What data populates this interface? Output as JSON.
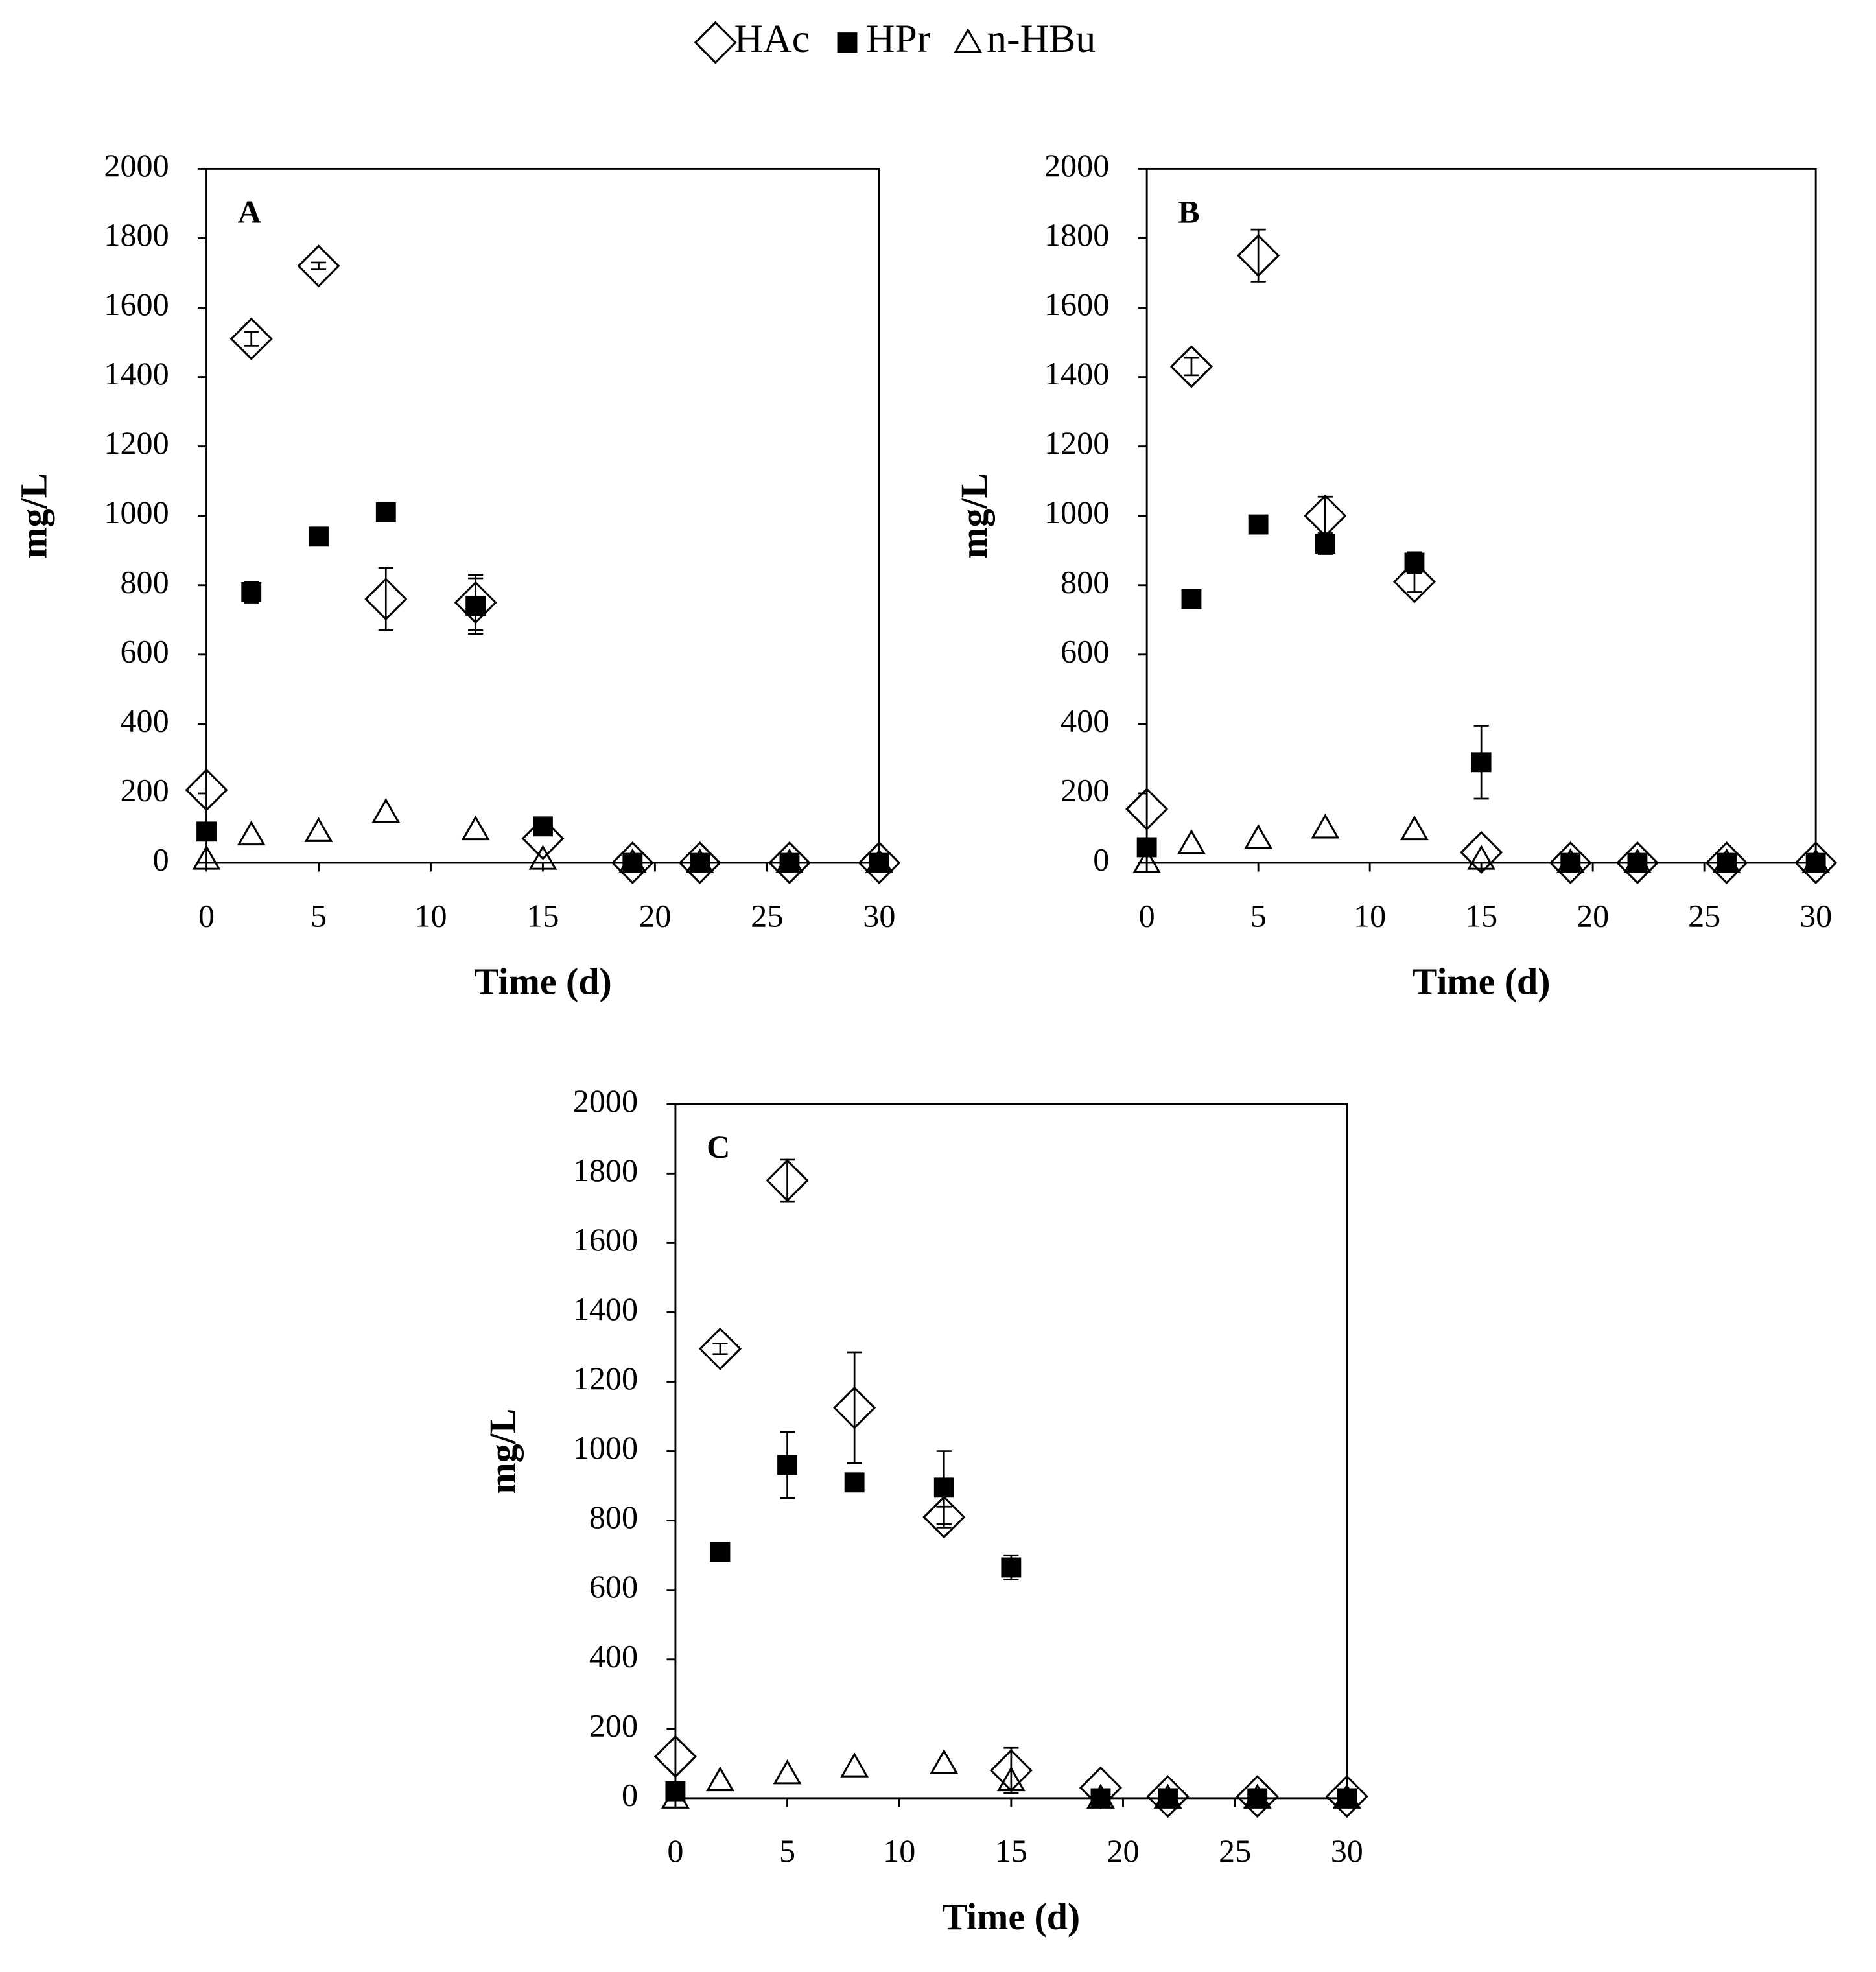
{
  "chart_data": [
    {
      "type": "scatter",
      "label": "A",
      "xlabel": "Time (d)",
      "ylabel": "mg/L",
      "x": [
        0,
        2,
        5,
        8,
        12,
        15,
        19,
        22,
        26,
        30
      ],
      "xlim": [
        0,
        30
      ],
      "ylim": [
        0,
        2000
      ],
      "xticks": [
        0,
        5,
        10,
        15,
        20,
        25,
        30
      ],
      "yticks": [
        0,
        200,
        400,
        600,
        800,
        1000,
        1200,
        1400,
        1600,
        1800,
        2000
      ],
      "series": [
        {
          "name": "HAc",
          "marker": "diamond",
          "color": "#000000",
          "values": [
            210,
            1510,
            1720,
            760,
            750,
            70,
            0,
            0,
            0,
            0
          ],
          "errors": [
            null,
            20,
            10,
            90,
            80,
            null,
            null,
            null,
            null,
            null
          ]
        },
        {
          "name": "HPr",
          "marker": "square",
          "color": "#000000",
          "values": [
            90,
            780,
            940,
            1010,
            740,
            105,
            0,
            0,
            0,
            0
          ],
          "errors": [
            null,
            30,
            null,
            null,
            80,
            null,
            null,
            null,
            null,
            null
          ]
        },
        {
          "name": "n-HBu",
          "marker": "triangle",
          "color": "#000000",
          "values": [
            10,
            80,
            90,
            145,
            95,
            10,
            0,
            0,
            0,
            0
          ],
          "errors": [
            null,
            null,
            null,
            null,
            null,
            null,
            null,
            null,
            null,
            null
          ]
        }
      ]
    },
    {
      "type": "scatter",
      "label": "B",
      "xlabel": "Time (d)",
      "ylabel": "mg/L",
      "x": [
        0,
        2,
        5,
        8,
        12,
        15,
        19,
        22,
        26,
        30
      ],
      "xlim": [
        0,
        30
      ],
      "ylim": [
        0,
        2000
      ],
      "xticks": [
        0,
        5,
        10,
        15,
        20,
        25,
        30
      ],
      "yticks": [
        0,
        200,
        400,
        600,
        800,
        1000,
        1200,
        1400,
        1600,
        1800,
        2000
      ],
      "series": [
        {
          "name": "HAc",
          "marker": "diamond",
          "color": "#000000",
          "values": [
            155,
            1430,
            1750,
            1000,
            810,
            30,
            0,
            0,
            0,
            0
          ],
          "errors": [
            null,
            25,
            75,
            55,
            30,
            null,
            null,
            null,
            null,
            null
          ]
        },
        {
          "name": "HPr",
          "marker": "square",
          "color": "#000000",
          "values": [
            45,
            760,
            975,
            920,
            865,
            290,
            0,
            0,
            0,
            0
          ],
          "errors": [
            null,
            null,
            null,
            30,
            30,
            105,
            null,
            null,
            null,
            null
          ]
        },
        {
          "name": "n-HBu",
          "marker": "triangle",
          "color": "#000000",
          "values": [
            0,
            55,
            70,
            100,
            95,
            10,
            0,
            0,
            0,
            0
          ],
          "errors": [
            null,
            null,
            null,
            null,
            null,
            null,
            null,
            null,
            null,
            null
          ]
        }
      ]
    },
    {
      "type": "scatter",
      "label": "C",
      "xlabel": "Time (d)",
      "ylabel": "mg/L",
      "x": [
        0,
        2,
        5,
        8,
        12,
        15,
        19,
        22,
        26,
        30
      ],
      "xlim": [
        0,
        30
      ],
      "ylim": [
        0,
        2000
      ],
      "xticks": [
        0,
        5,
        10,
        15,
        20,
        25,
        30
      ],
      "yticks": [
        0,
        200,
        400,
        600,
        800,
        1000,
        1200,
        1400,
        1600,
        1800,
        2000
      ],
      "series": [
        {
          "name": "HAc",
          "marker": "diamond",
          "color": "#000000",
          "values": [
            120,
            1295,
            1780,
            1125,
            810,
            80,
            30,
            5,
            5,
            5
          ],
          "errors": [
            null,
            15,
            60,
            160,
            30,
            65,
            null,
            null,
            null,
            null
          ]
        },
        {
          "name": "HPr",
          "marker": "square",
          "color": "#000000",
          "values": [
            20,
            710,
            960,
            910,
            895,
            665,
            0,
            0,
            0,
            0
          ],
          "errors": [
            null,
            null,
            95,
            25,
            105,
            35,
            null,
            null,
            null,
            null
          ]
        },
        {
          "name": "n-HBu",
          "marker": "triangle",
          "color": "#000000",
          "values": [
            0,
            50,
            70,
            90,
            100,
            50,
            0,
            0,
            0,
            0
          ],
          "errors": [
            null,
            null,
            null,
            null,
            null,
            null,
            null,
            null,
            null,
            null
          ]
        }
      ]
    }
  ]
}
